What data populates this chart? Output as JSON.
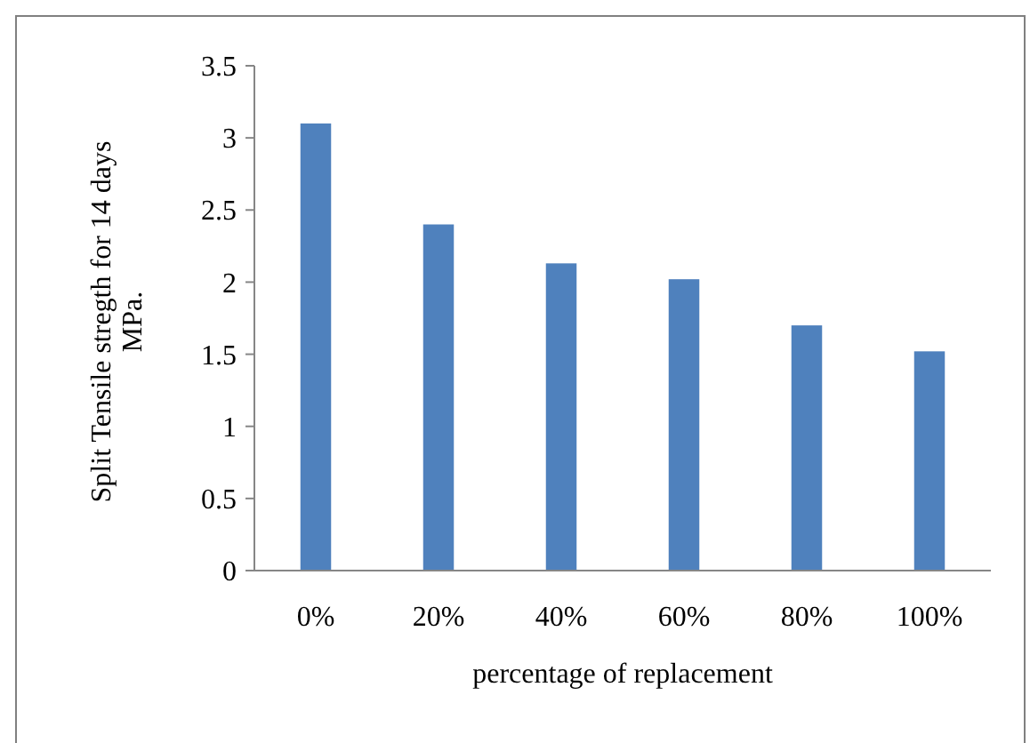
{
  "chart_data": {
    "type": "bar",
    "xlabel": "percentage of replacement",
    "ylabel": "Split Tensile stregth for 14 days MPa.",
    "categories": [
      "0%",
      "20%",
      "40%",
      "60%",
      "80%",
      "100%"
    ],
    "values": [
      3.1,
      2.4,
      2.13,
      2.02,
      1.7,
      1.52
    ],
    "color": "#4f81bd",
    "ylim": [
      0,
      3.5
    ],
    "yticks": [
      0,
      0.5,
      1,
      1.5,
      2,
      2.5,
      3,
      3.5
    ],
    "grid": false
  }
}
